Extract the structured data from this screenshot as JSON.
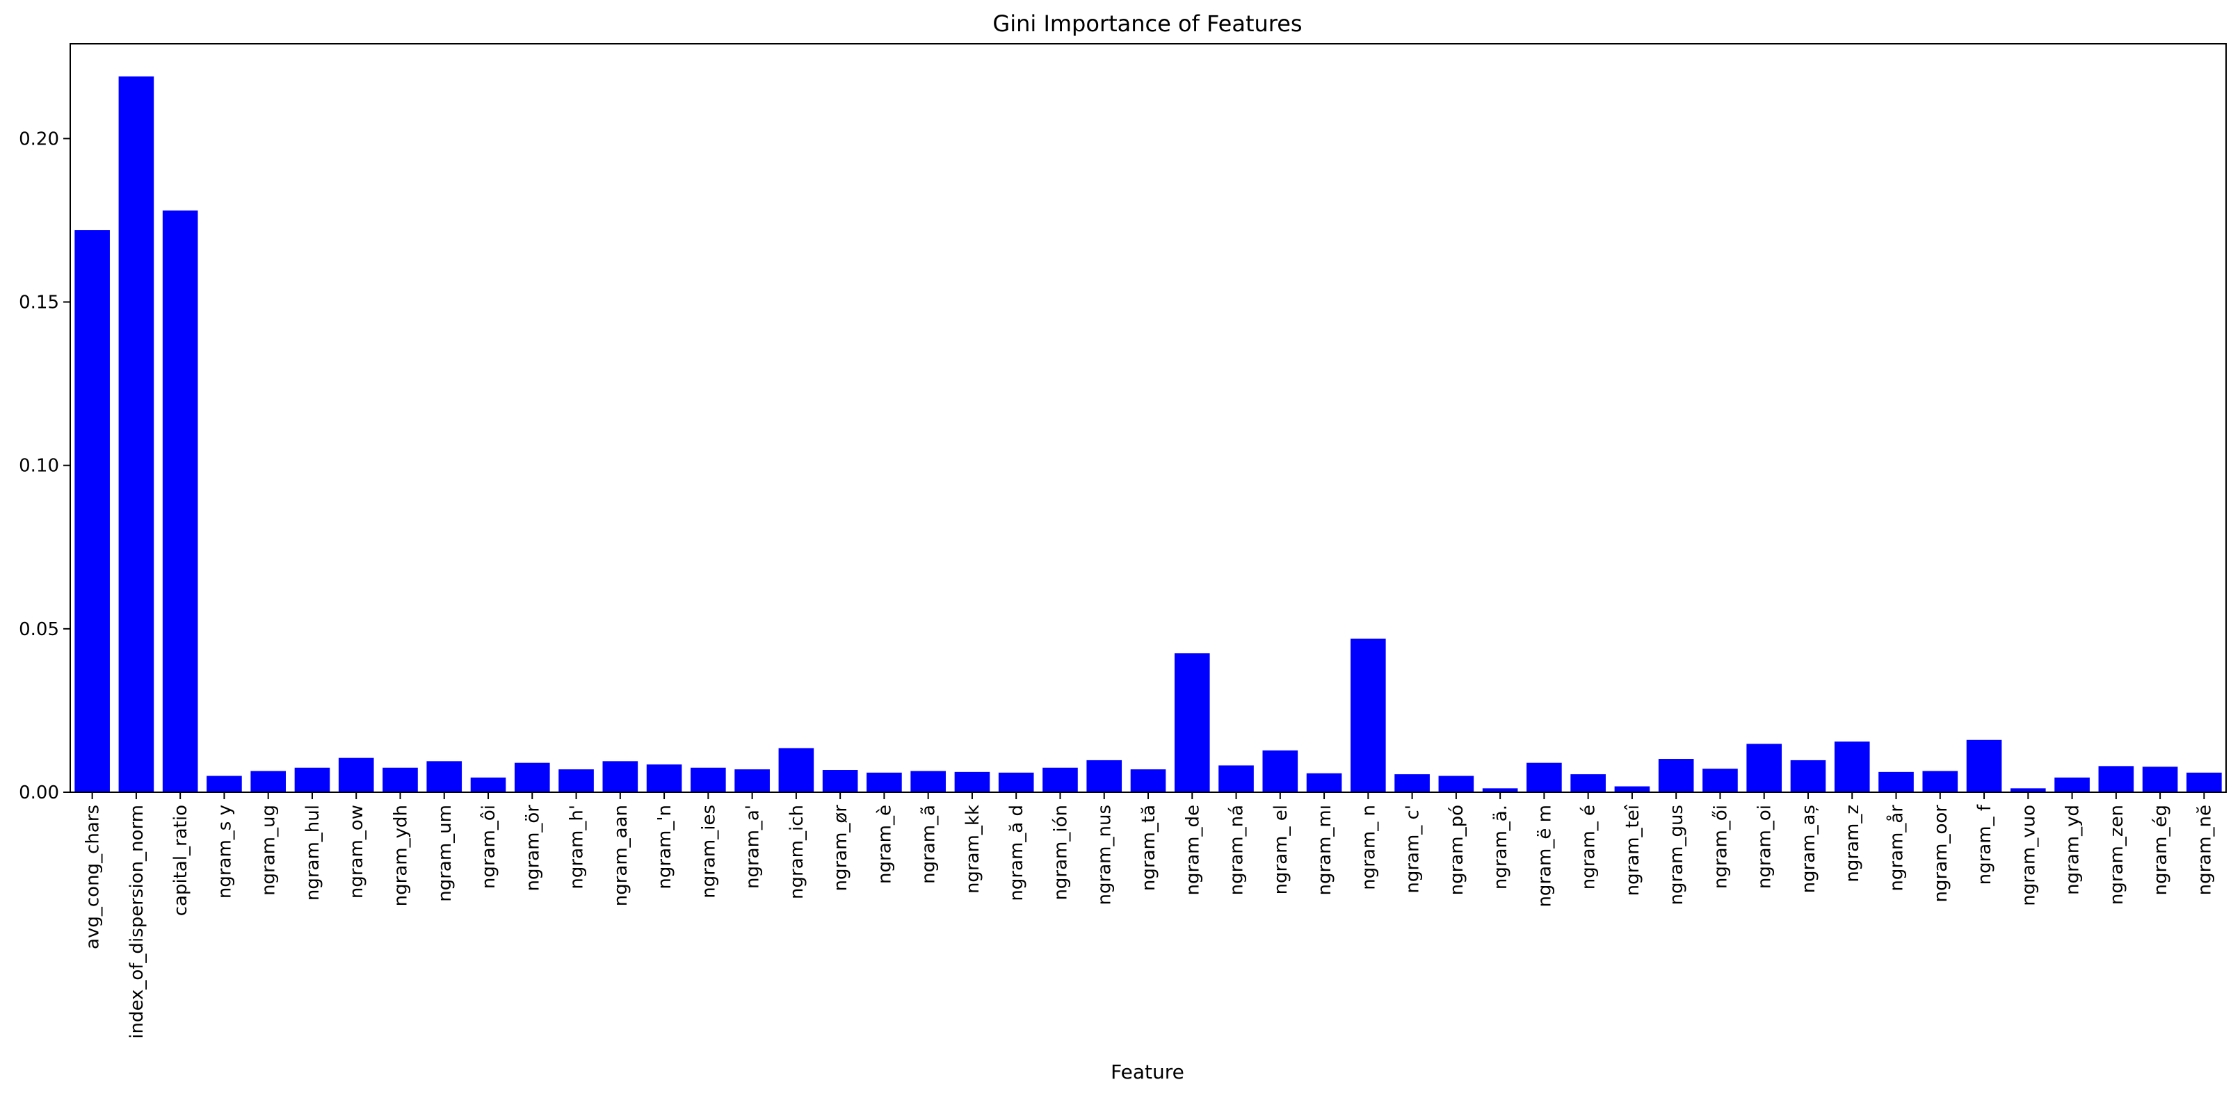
{
  "chart_data": {
    "type": "bar",
    "title": "Gini Importance of Features",
    "xlabel": "Feature",
    "ylabel": "",
    "ylim": [
      0,
      0.229
    ],
    "yticks": [
      0.0,
      0.05,
      0.1,
      0.15,
      0.2
    ],
    "ytick_labels": [
      "0.00",
      "0.05",
      "0.10",
      "0.15",
      "0.20"
    ],
    "grid": false,
    "bar_color": "#0000ff",
    "categories": [
      "avg_cong_chars",
      "index_of_dispersion_norm",
      "capital_ratio",
      "ngram_s y",
      "ngram_ug",
      "ngram_hul",
      "ngram_ow",
      "ngram_ydh",
      "ngram_um",
      "ngram_ôi",
      "ngram_ör",
      "ngram_h'",
      "ngram_aan",
      "ngram_'n",
      "ngram_ies",
      "ngram_a'",
      "ngram_ich",
      "ngram_ør",
      "ngram_è",
      "ngram_ã",
      "ngram_kk",
      "ngram_ă d",
      "ngram_ión",
      "ngram_nus",
      "ngram_tă",
      "ngram_de",
      "ngram_ná",
      "ngram_ el",
      "ngram_mı",
      "ngram_ n",
      "ngram_ c'",
      "ngram_pó",
      "ngram_ä.",
      "ngram_ë m",
      "ngram_ é",
      "ngram_teî",
      "ngram_gus",
      "ngram_ői",
      "ngram_oi",
      "ngram_aș",
      "ngram_z",
      "ngram_år",
      "ngram_oor",
      "ngram_ f",
      "ngram_vuo",
      "ngram_yd",
      "ngram_zen",
      "ngram_ég",
      "ngram_nĕ"
    ],
    "values": [
      0.172,
      0.219,
      0.178,
      0.005,
      0.0065,
      0.0075,
      0.0105,
      0.0075,
      0.0095,
      0.0045,
      0.009,
      0.007,
      0.0095,
      0.0085,
      0.0075,
      0.007,
      0.0135,
      0.0068,
      0.006,
      0.0065,
      0.0062,
      0.006,
      0.0075,
      0.0098,
      0.007,
      0.0425,
      0.0082,
      0.0128,
      0.0058,
      0.047,
      0.0055,
      0.005,
      0.0012,
      0.009,
      0.0055,
      0.0018,
      0.0102,
      0.0072,
      0.0148,
      0.0098,
      0.0155,
      0.0062,
      0.0065,
      0.016,
      0.0012,
      0.0045,
      0.008,
      0.0078,
      0.006
    ]
  }
}
